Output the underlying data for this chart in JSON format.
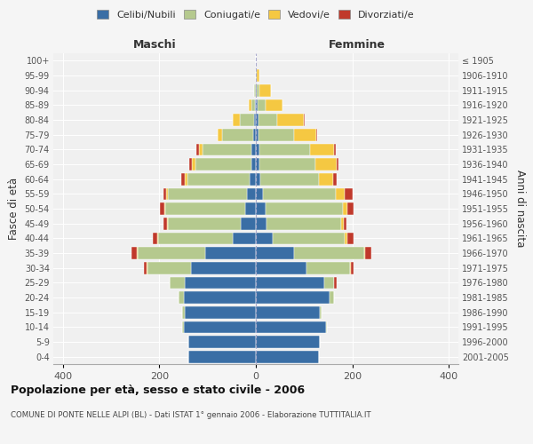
{
  "age_groups": [
    "0-4",
    "5-9",
    "10-14",
    "15-19",
    "20-24",
    "25-29",
    "30-34",
    "35-39",
    "40-44",
    "45-49",
    "50-54",
    "55-59",
    "60-64",
    "65-69",
    "70-74",
    "75-79",
    "80-84",
    "85-89",
    "90-94",
    "95-99",
    "100+"
  ],
  "birth_years": [
    "2001-2005",
    "1996-2000",
    "1991-1995",
    "1986-1990",
    "1981-1985",
    "1976-1980",
    "1971-1975",
    "1966-1970",
    "1961-1965",
    "1956-1960",
    "1951-1955",
    "1946-1950",
    "1941-1945",
    "1936-1940",
    "1931-1935",
    "1926-1930",
    "1921-1925",
    "1916-1920",
    "1911-1915",
    "1906-1910",
    "≤ 1905"
  ],
  "male": {
    "celibi": [
      140,
      140,
      150,
      148,
      150,
      148,
      135,
      105,
      48,
      32,
      22,
      18,
      12,
      10,
      10,
      5,
      3,
      2,
      0,
      0,
      0
    ],
    "coniugati": [
      0,
      0,
      2,
      5,
      10,
      30,
      90,
      140,
      155,
      150,
      165,
      165,
      130,
      115,
      100,
      65,
      30,
      8,
      3,
      0,
      0
    ],
    "vedovi": [
      0,
      0,
      0,
      0,
      0,
      0,
      2,
      2,
      2,
      2,
      2,
      3,
      5,
      8,
      8,
      10,
      15,
      5,
      1,
      0,
      0
    ],
    "divorziati": [
      0,
      0,
      0,
      0,
      0,
      0,
      5,
      10,
      8,
      8,
      10,
      5,
      8,
      5,
      5,
      0,
      0,
      0,
      0,
      0,
      0
    ]
  },
  "female": {
    "nubili": [
      130,
      132,
      145,
      132,
      152,
      142,
      105,
      80,
      35,
      22,
      20,
      15,
      10,
      8,
      8,
      5,
      5,
      3,
      2,
      0,
      0
    ],
    "coniugate": [
      0,
      0,
      2,
      5,
      10,
      20,
      90,
      145,
      150,
      155,
      160,
      150,
      120,
      115,
      105,
      75,
      40,
      18,
      5,
      2,
      0
    ],
    "vedove": [
      0,
      0,
      0,
      0,
      0,
      0,
      2,
      2,
      5,
      5,
      10,
      20,
      30,
      45,
      50,
      45,
      55,
      35,
      25,
      5,
      0
    ],
    "divorziate": [
      0,
      0,
      0,
      0,
      0,
      5,
      5,
      12,
      12,
      5,
      12,
      15,
      8,
      3,
      3,
      2,
      2,
      0,
      0,
      0,
      0
    ]
  },
  "colors": {
    "celibi_nubili": "#3a6ea5",
    "coniugati": "#b5c98e",
    "vedovi": "#f5c842",
    "divorziati": "#c0392b"
  },
  "title": "Popolazione per età, sesso e stato civile - 2006",
  "subtitle": "COMUNE DI PONTE NELLE ALPI (BL) - Dati ISTAT 1° gennaio 2006 - Elaborazione TUTTITALIA.IT",
  "ylabel_left": "Fasce di età",
  "ylabel_right": "Anni di nascita",
  "xlabel_left": "Maschi",
  "xlabel_right": "Femmine",
  "xlim": 420,
  "bg_color": "#f5f5f5",
  "plot_bg": "#f0f0f0",
  "grid_color": "#ffffff"
}
